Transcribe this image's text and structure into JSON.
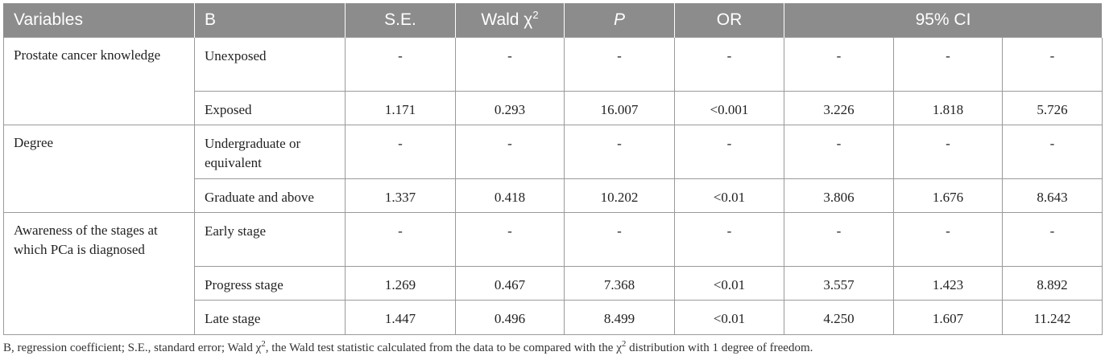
{
  "table": {
    "headers": {
      "variables": "Variables",
      "b": "B",
      "se": "S.E.",
      "wald": "Wald χ",
      "wald_sup": "2",
      "p": "P",
      "or": "OR",
      "ci": "95% CI"
    },
    "groups": [
      {
        "variable": "Prostate cancer knowledge",
        "rows": [
          {
            "level": "Unexposed",
            "values": [
              "-",
              "-",
              "-",
              "-",
              "-",
              "-",
              "-"
            ]
          },
          {
            "level": "Exposed",
            "values": [
              "1.171",
              "0.293",
              "16.007",
              "<0.001",
              "3.226",
              "1.818",
              "5.726"
            ]
          }
        ]
      },
      {
        "variable": "Degree",
        "rows": [
          {
            "level": "Undergraduate or equivalent",
            "values": [
              "-",
              "-",
              "-",
              "-",
              "-",
              "-",
              "-"
            ]
          },
          {
            "level": "Graduate and above",
            "values": [
              "1.337",
              "0.418",
              "10.202",
              "<0.01",
              "3.806",
              "1.676",
              "8.643"
            ]
          }
        ]
      },
      {
        "variable": "Awareness of the stages at which PCa is diagnosed",
        "rows": [
          {
            "level": "Early stage",
            "values": [
              "-",
              "-",
              "-",
              "-",
              "-",
              "-",
              "-"
            ]
          },
          {
            "level": "Progress stage",
            "values": [
              "1.269",
              "0.467",
              "7.368",
              "<0.01",
              "3.557",
              "1.423",
              "8.892"
            ]
          },
          {
            "level": "Late stage",
            "values": [
              "1.447",
              "0.496",
              "8.499",
              "<0.01",
              "4.250",
              "1.607",
              "11.242"
            ]
          }
        ]
      }
    ]
  },
  "footnote": {
    "part1": "B, regression coefficient; S.E., standard error; Wald χ",
    "sup1": "2",
    "part2": ", the Wald test statistic calculated from the data to be compared with the χ",
    "sup2": "2",
    "part3": " distribution with 1 degree of freedom."
  }
}
